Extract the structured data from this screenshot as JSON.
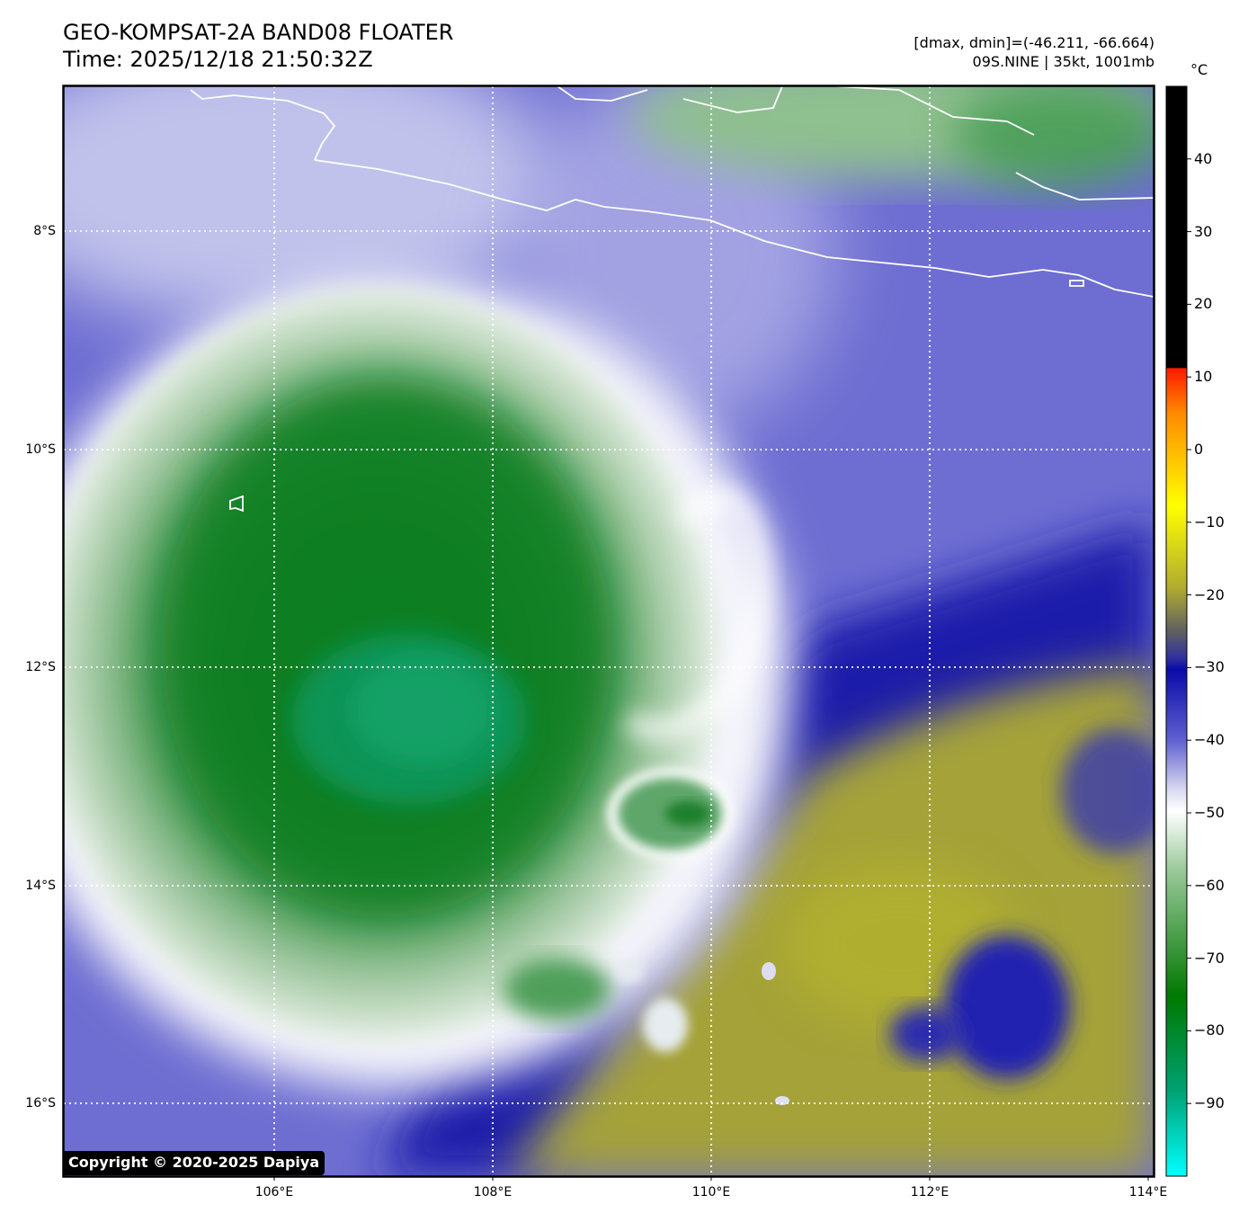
{
  "header": {
    "title": "GEO-KOMPSAT-2A BAND08 FLOATER",
    "time": "Time: 2025/12/18 21:50:32Z",
    "data_range": "[dmax, dmin]=(-46.211, -66.664)",
    "storm_info": "09S.NINE | 35kt, 1001mb"
  },
  "map": {
    "lat_ticks": [
      {
        "value": -8,
        "label": "8°S"
      },
      {
        "value": -10,
        "label": "10°S"
      },
      {
        "value": -12,
        "label": "12°S"
      },
      {
        "value": -14,
        "label": "14°S"
      },
      {
        "value": -16,
        "label": "16°S"
      }
    ],
    "lon_ticks": [
      {
        "value": 106,
        "label": "106°E"
      },
      {
        "value": 108,
        "label": "108°E"
      },
      {
        "value": 110,
        "label": "110°E"
      },
      {
        "value": 112,
        "label": "112°E"
      },
      {
        "value": 114,
        "label": "114°E"
      }
    ],
    "gridlines": true
  },
  "colorbar": {
    "unit": "°C",
    "ticks": [
      {
        "value": 40,
        "label": "40"
      },
      {
        "value": 30,
        "label": "30"
      },
      {
        "value": 20,
        "label": "20"
      },
      {
        "value": 10,
        "label": "10"
      },
      {
        "value": 0,
        "label": "0"
      },
      {
        "value": -10,
        "label": "−10"
      },
      {
        "value": -20,
        "label": "−20"
      },
      {
        "value": -30,
        "label": "−30"
      },
      {
        "value": -40,
        "label": "−40"
      },
      {
        "value": -50,
        "label": "−50"
      },
      {
        "value": -60,
        "label": "−60"
      },
      {
        "value": -70,
        "label": "−70"
      },
      {
        "value": -80,
        "label": "−80"
      },
      {
        "value": -90,
        "label": "−90"
      }
    ],
    "range": [
      -100,
      50
    ]
  },
  "colors": {
    "cold_cloud_green": "#0a7a1a",
    "core_teal": "#0b9a62",
    "cloud_white": "#ffffff",
    "mid_blue": "#6a6ad0",
    "deep_blue": "#1414a8",
    "warm_olive": "#a8a632"
  },
  "copyright": "Copyright © 2020-2025 Dapiya"
}
